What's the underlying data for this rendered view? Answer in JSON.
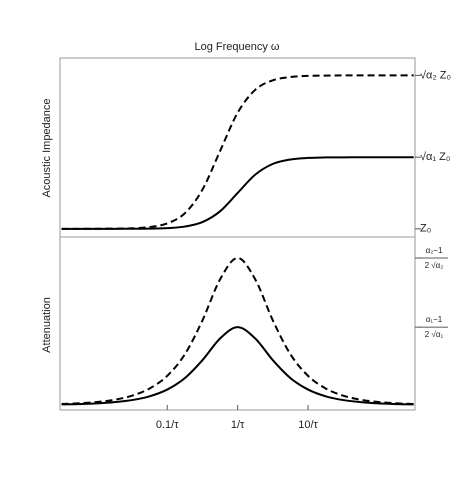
{
  "chart_data": [
    {
      "type": "line",
      "title": "Log Frequency ω",
      "ylabel": "Acoustic Impedance",
      "xscale": "log",
      "xlim": [
        0.003,
        330
      ],
      "ylim": [
        0.92,
        2.67
      ],
      "x": [
        0.003162,
        0.005623,
        0.01,
        0.01778,
        0.03162,
        0.05623,
        0.1,
        0.1778,
        0.3162,
        0.5623,
        1,
        1.778,
        3.162,
        5.623,
        10,
        17.78,
        31.62,
        56.23,
        100,
        177.8,
        316.2
      ],
      "yticks": [
        {
          "value": 1,
          "label": "Z₀"
        },
        {
          "value": 1.7,
          "label": "√α₁ Z₀"
        },
        {
          "value": 2.5,
          "label": "√α₂ Z₀"
        }
      ],
      "series": [
        {
          "color": "#000000",
          "linestyle": "dashed",
          "values": [
            1.0,
            1.0,
            1.001,
            1.002,
            1.005,
            1.017,
            1.053,
            1.152,
            1.383,
            1.76,
            2.135,
            2.359,
            2.452,
            2.484,
            2.495,
            2.498,
            2.5,
            2.5,
            2.5,
            2.5,
            2.5
          ]
        },
        {
          "color": "#000000",
          "linestyle": "solid",
          "values": [
            1.0,
            1.0,
            1.0,
            1.0,
            1.001,
            1.002,
            1.007,
            1.022,
            1.066,
            1.171,
            1.351,
            1.53,
            1.635,
            1.678,
            1.693,
            1.698,
            1.699,
            1.7,
            1.7,
            1.7,
            1.7
          ]
        }
      ]
    },
    {
      "type": "line",
      "ylabel": "Attenuation",
      "xscale": "log",
      "xlim": [
        0.003,
        330
      ],
      "ylim": [
        -0.036,
        1.2
      ],
      "x": [
        0.003162,
        0.005623,
        0.01,
        0.01778,
        0.03162,
        0.05623,
        0.1,
        0.1778,
        0.3162,
        0.5623,
        1,
        1.778,
        3.162,
        5.623,
        10,
        17.78,
        31.62,
        56.23,
        100,
        177.8,
        316.2
      ],
      "xticks": [
        {
          "value": 0.1,
          "label": "0.1/τ"
        },
        {
          "value": 1,
          "label": "1/τ"
        },
        {
          "value": 10,
          "label": "10/τ"
        }
      ],
      "yticks": [
        {
          "value": 0.556,
          "label": {
            "numerator": "α₁−1",
            "denominator": "2 √α₁"
          }
        },
        {
          "value": 1.05,
          "label": {
            "numerator": "α₂−1",
            "denominator": "2 √α₂"
          }
        }
      ],
      "series": [
        {
          "color": "#000000",
          "linestyle": "dashed",
          "values": [
            0.007,
            0.012,
            0.021,
            0.037,
            0.066,
            0.118,
            0.208,
            0.362,
            0.604,
            0.897,
            1.05,
            0.897,
            0.604,
            0.362,
            0.208,
            0.118,
            0.066,
            0.037,
            0.021,
            0.012,
            0.007
          ]
        },
        {
          "color": "#000000",
          "linestyle": "solid",
          "values": [
            0.004,
            0.006,
            0.011,
            0.02,
            0.035,
            0.062,
            0.11,
            0.192,
            0.32,
            0.475,
            0.556,
            0.475,
            0.32,
            0.192,
            0.11,
            0.062,
            0.035,
            0.02,
            0.011,
            0.006,
            0.004
          ]
        }
      ]
    }
  ]
}
